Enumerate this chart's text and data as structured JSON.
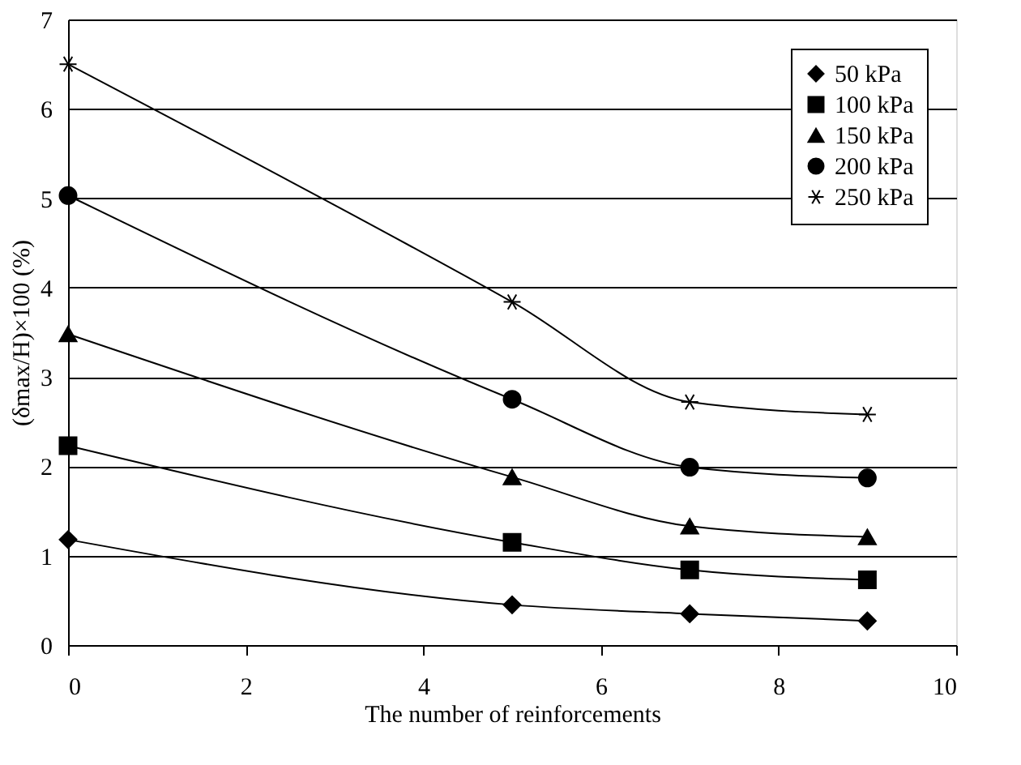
{
  "chart_data": {
    "type": "line",
    "xlabel": "The number of reinforcements",
    "ylabel": "(δmax/H)×100 (%)",
    "x": [
      0,
      5,
      7,
      9
    ],
    "series": [
      {
        "name": "50 kPa",
        "color": "#000000",
        "marker": "diamond",
        "values": [
          1.18,
          0.45,
          0.35,
          0.27
        ]
      },
      {
        "name": "100 kPa",
        "color": "#000000",
        "marker": "square",
        "values": [
          2.23,
          1.15,
          0.84,
          0.73
        ]
      },
      {
        "name": "150 kPa",
        "color": "#000000",
        "marker": "triangle",
        "values": [
          3.48,
          1.88,
          1.33,
          1.21
        ]
      },
      {
        "name": "200 kPa",
        "color": "#000000",
        "marker": "circle",
        "values": [
          5.03,
          2.75,
          1.99,
          1.87
        ]
      },
      {
        "name": "250 kPa",
        "color": "#000000",
        "marker": "cross",
        "values": [
          6.5,
          3.84,
          2.72,
          2.58
        ]
      }
    ],
    "xlim": [
      0,
      10
    ],
    "xticks": [
      0,
      2,
      4,
      6,
      8,
      10
    ],
    "ylim": [
      0,
      7
    ],
    "yticks": [
      0,
      1,
      2,
      3,
      4,
      5,
      6,
      7
    ],
    "grid": "y",
    "legend": "top right",
    "line_style": "solid"
  }
}
